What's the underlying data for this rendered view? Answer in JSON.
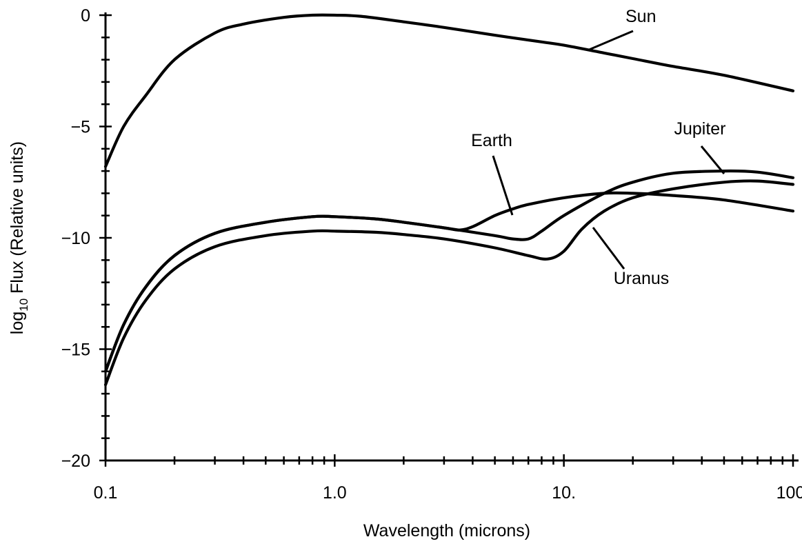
{
  "chart_data": {
    "type": "line",
    "xlabel": "Wavelength (microns)",
    "ylabel_parts": {
      "prefix": "log",
      "subscript": "10",
      "suffix": " Flux (Relative units)"
    },
    "x_scale": "log",
    "xlim": [
      0.1,
      100
    ],
    "ylim": [
      -20,
      0
    ],
    "x_tick_labels": [
      {
        "value": 0.1,
        "label": "0.1"
      },
      {
        "value": 1,
        "label": "1.0"
      },
      {
        "value": 10,
        "label": "10."
      },
      {
        "value": 100,
        "label": "100."
      }
    ],
    "y_tick_labels": [
      {
        "value": 0,
        "label": "0"
      },
      {
        "value": -5,
        "label": "-5"
      },
      {
        "value": -10,
        "label": "-10"
      },
      {
        "value": -15,
        "label": "-15"
      },
      {
        "value": -20,
        "label": "-20"
      }
    ],
    "grid": false,
    "series": [
      {
        "name": "Sun",
        "x": [
          0.1,
          0.12,
          0.15,
          0.2,
          0.3,
          0.4,
          0.6,
          0.8,
          1.0,
          1.3,
          2,
          3,
          5,
          8,
          10,
          15,
          20,
          30,
          50,
          100
        ],
        "y": [
          -6.8,
          -5.0,
          -3.6,
          -2.0,
          -0.8,
          -0.4,
          -0.1,
          0,
          0,
          -0.05,
          -0.3,
          -0.55,
          -0.9,
          -1.2,
          -1.35,
          -1.7,
          -1.95,
          -2.3,
          -2.7,
          -3.4
        ]
      },
      {
        "name": "Earth",
        "x": [
          0.1,
          0.12,
          0.15,
          0.2,
          0.3,
          0.5,
          0.8,
          1.0,
          1.5,
          2,
          3,
          3.5,
          4,
          5,
          6,
          7,
          10,
          15,
          20,
          30,
          50,
          100
        ],
        "y": [
          -16.0,
          -13.9,
          -12.2,
          -10.8,
          -9.8,
          -9.3,
          -9.05,
          -9.05,
          -9.15,
          -9.3,
          -9.55,
          -9.65,
          -9.5,
          -9.0,
          -8.7,
          -8.5,
          -8.2,
          -8.0,
          -8.0,
          -8.1,
          -8.3,
          -8.8
        ]
      },
      {
        "name": "Jupiter",
        "x": [
          0.1,
          0.12,
          0.15,
          0.2,
          0.3,
          0.5,
          0.8,
          1.0,
          1.5,
          2,
          3,
          5,
          6,
          7,
          8,
          10,
          15,
          20,
          30,
          50,
          70,
          100
        ],
        "y": [
          -16.0,
          -13.9,
          -12.2,
          -10.8,
          -9.8,
          -9.3,
          -9.05,
          -9.05,
          -9.15,
          -9.3,
          -9.55,
          -9.9,
          -10.05,
          -10.05,
          -9.7,
          -9.0,
          -8.0,
          -7.5,
          -7.1,
          -7.0,
          -7.05,
          -7.3
        ]
      },
      {
        "name": "Uranus",
        "x": [
          0.1,
          0.12,
          0.15,
          0.2,
          0.3,
          0.5,
          0.8,
          1.0,
          1.5,
          2,
          3,
          5,
          7,
          8.5,
          10,
          12,
          15,
          20,
          30,
          50,
          70,
          100
        ],
        "y": [
          -16.6,
          -14.5,
          -12.8,
          -11.4,
          -10.4,
          -9.9,
          -9.7,
          -9.7,
          -9.75,
          -9.85,
          -10.05,
          -10.45,
          -10.8,
          -10.95,
          -10.6,
          -9.6,
          -8.8,
          -8.2,
          -7.8,
          -7.5,
          -7.45,
          -7.6
        ]
      }
    ]
  }
}
